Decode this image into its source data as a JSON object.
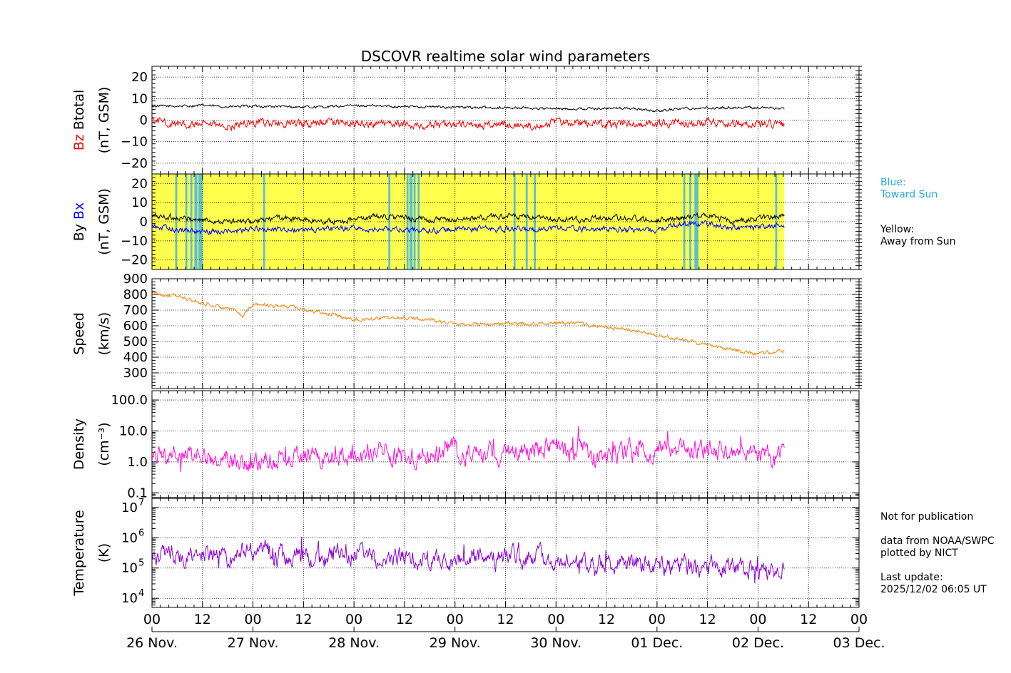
{
  "chart_data": [
    {
      "panel": "magnetic-field-total",
      "type": "line",
      "title": "DSCOVR realtime solar wind parameters",
      "ylabel_parts": [
        {
          "text": "Bz",
          "color": "#ff0000"
        },
        {
          "text": "Btotal",
          "color": "#000000"
        }
      ],
      "ylabel_units": "(nT, GSM)",
      "ylim": [
        -25,
        25
      ],
      "yticks": [
        20,
        10,
        0,
        -10,
        -20
      ],
      "ytick_labels": [
        "20",
        "10",
        "0",
        "−10",
        "−20"
      ],
      "grid": true,
      "series": [
        {
          "name": "Btotal",
          "color": "#000000",
          "x_days": [
            0,
            0.25,
            0.5,
            0.75,
            1,
            1.25,
            1.5,
            1.75,
            2,
            2.25,
            2.5,
            2.75,
            3,
            3.25,
            3.5,
            3.75,
            4,
            4.25,
            4.5,
            4.75,
            5,
            5.25,
            5.5,
            5.75,
            6,
            6.26
          ],
          "values": [
            6.5,
            6.5,
            6.8,
            6.2,
            6.5,
            6.3,
            6,
            6.2,
            6.8,
            6.5,
            6.3,
            6.2,
            6,
            5.8,
            5.8,
            5.6,
            5.2,
            5.3,
            5.5,
            5.5,
            4.2,
            5.5,
            5.6,
            5.8,
            5.8,
            5.5
          ]
        },
        {
          "name": "Bz",
          "color": "#ff0000",
          "x_days": [
            0,
            0.25,
            0.5,
            0.75,
            1,
            1.25,
            1.5,
            1.75,
            2,
            2.25,
            2.5,
            2.75,
            3,
            3.25,
            3.5,
            3.75,
            4,
            4.25,
            4.5,
            4.75,
            5,
            5.25,
            5.5,
            5.75,
            6,
            6.26
          ],
          "values": [
            0,
            -2,
            -2.5,
            -3,
            -1,
            -1.5,
            -2,
            -1,
            -1.5,
            -2,
            -2,
            -2.5,
            -2,
            -2.5,
            -2,
            -2.5,
            -1,
            -1.5,
            -2,
            -1.5,
            -1.5,
            -1.5,
            -0.5,
            -1.5,
            -2,
            -2
          ]
        }
      ]
    },
    {
      "panel": "magnetic-field-components",
      "type": "line",
      "ylabel_parts": [
        {
          "text": "By",
          "color": "#000000"
        },
        {
          "text": "Bx",
          "color": "#0000ff"
        }
      ],
      "ylabel_units": "(nT, GSM)",
      "ylim": [
        -25,
        25
      ],
      "yticks": [
        20,
        10,
        0,
        -10,
        -20
      ],
      "ytick_labels": [
        "20",
        "10",
        "0",
        "−10",
        "−20"
      ],
      "grid": true,
      "background": {
        "away_color": "#ffff4d",
        "toward_color": "#5cc0d4",
        "data_end_day": 6.26
      },
      "toward_sun_intervals_days": [
        [
          0.23,
          0.25
        ],
        [
          0.33,
          0.35
        ],
        [
          0.38,
          0.4
        ],
        [
          0.42,
          0.45
        ],
        [
          0.46,
          0.48
        ],
        [
          0.47,
          0.5
        ],
        [
          1.1,
          1.12
        ],
        [
          2.34,
          2.36
        ],
        [
          2.52,
          2.54
        ],
        [
          2.55,
          2.58
        ],
        [
          2.59,
          2.61
        ],
        [
          2.63,
          2.65
        ],
        [
          3.58,
          3.6
        ],
        [
          3.7,
          3.72
        ],
        [
          3.78,
          3.8
        ],
        [
          5.26,
          5.28
        ],
        [
          5.32,
          5.34
        ],
        [
          5.37,
          5.41
        ],
        [
          6.17,
          6.19
        ]
      ],
      "series": [
        {
          "name": "By",
          "color": "#000000",
          "x_days": [
            0,
            0.25,
            0.5,
            0.75,
            1,
            1.25,
            1.5,
            1.75,
            2,
            2.25,
            2.5,
            2.75,
            3,
            3.25,
            3.5,
            3.75,
            4,
            4.25,
            4.5,
            4.75,
            5,
            5.25,
            5.5,
            5.75,
            6,
            6.26
          ],
          "values": [
            3,
            2,
            1,
            0,
            0,
            2,
            1,
            0,
            1,
            3,
            2,
            1,
            1,
            2,
            3,
            2,
            1,
            1,
            2,
            2,
            1,
            2,
            4,
            0,
            2,
            3
          ]
        },
        {
          "name": "Bx",
          "color": "#0000ff",
          "x_days": [
            0,
            0.25,
            0.5,
            0.75,
            1,
            1.25,
            1.5,
            1.75,
            2,
            2.25,
            2.5,
            2.75,
            3,
            3.25,
            3.5,
            3.75,
            4,
            4.25,
            4.5,
            4.75,
            5,
            5.25,
            5.5,
            5.75,
            6,
            6.26
          ],
          "values": [
            -2,
            -4,
            -5,
            -5,
            -4,
            -4,
            -4.5,
            -4,
            -3.5,
            -4,
            -4,
            -4.5,
            -4,
            -3.5,
            -4,
            -4,
            -3,
            -4,
            -4,
            -4,
            -4.5,
            -1,
            -1,
            -3.5,
            -3,
            -2
          ]
        }
      ]
    },
    {
      "panel": "speed",
      "type": "line",
      "ylabel": "Speed",
      "ylabel_units": "(km/s)",
      "ylim": [
        200,
        900
      ],
      "yticks": [
        900,
        800,
        700,
        600,
        500,
        400,
        300
      ],
      "ytick_labels": [
        "900",
        "800",
        "700",
        "600",
        "500",
        "400",
        "300"
      ],
      "grid": true,
      "series": [
        {
          "name": "Speed",
          "color": "#ff7f00",
          "x_days": [
            0,
            0.1,
            0.25,
            0.4,
            0.6,
            0.8,
            0.9,
            1,
            1.2,
            1.4,
            1.6,
            1.8,
            2,
            2.25,
            2.5,
            2.75,
            3,
            3.25,
            3.5,
            3.75,
            4,
            4.25,
            4.5,
            4.75,
            5,
            5.25,
            5.5,
            5.75,
            6,
            6.26
          ],
          "values": [
            810,
            800,
            790,
            760,
            730,
            700,
            660,
            740,
            730,
            720,
            690,
            670,
            640,
            650,
            650,
            640,
            610,
            610,
            615,
            610,
            620,
            610,
            590,
            570,
            540,
            510,
            480,
            450,
            420,
            440
          ]
        }
      ]
    },
    {
      "panel": "density",
      "type": "line",
      "yscale": "log",
      "ylabel": "Density",
      "ylabel_units": "(cm⁻³)",
      "ylim": [
        0.07,
        200
      ],
      "yticks": [
        100,
        10,
        1,
        0.1
      ],
      "ytick_labels": [
        "100.0",
        "10.0",
        "1.0",
        "0.1"
      ],
      "grid": true,
      "series": [
        {
          "name": "Density",
          "color": "#ff10d8",
          "x_days": [
            0,
            0.25,
            0.5,
            0.75,
            1,
            1.25,
            1.5,
            1.75,
            2,
            2.25,
            2.5,
            2.75,
            3,
            3.25,
            3.5,
            3.75,
            4,
            4.25,
            4.5,
            4.75,
            5,
            5.25,
            5.5,
            5.75,
            6,
            6.26
          ],
          "values": [
            1.3,
            1.4,
            1.5,
            1.3,
            1,
            1.3,
            1.5,
            1.6,
            1.8,
            2,
            1.5,
            2,
            2.5,
            1.6,
            1.8,
            2.5,
            2.8,
            1.8,
            1.5,
            2,
            2,
            2.5,
            3,
            1.6,
            1.5,
            2.2
          ]
        }
      ]
    },
    {
      "panel": "temperature",
      "type": "line",
      "yscale": "log",
      "ylabel": "Temperature",
      "ylabel_units": "(K)",
      "ylim": [
        5000,
        20000000
      ],
      "yticks": [
        10000000,
        1000000,
        100000,
        10000
      ],
      "ytick_labels": [
        "10",
        "10",
        "10",
        "10"
      ],
      "ytick_exponents": [
        "7",
        "6",
        "5",
        "4"
      ],
      "grid": true,
      "series": [
        {
          "name": "Temperature",
          "color": "#8b00d6",
          "x_days": [
            0,
            0.25,
            0.5,
            0.75,
            1,
            1.25,
            1.5,
            1.75,
            2,
            2.25,
            2.5,
            2.75,
            3,
            3.25,
            3.5,
            3.75,
            4,
            4.25,
            4.5,
            4.75,
            5,
            5.25,
            5.5,
            5.75,
            6,
            6.26
          ],
          "values": [
            280000,
            260000,
            280000,
            200000,
            400000,
            300000,
            250000,
            200000,
            300000,
            180000,
            220000,
            180000,
            160000,
            180000,
            220000,
            250000,
            200000,
            180000,
            150000,
            150000,
            110000,
            130000,
            90000,
            120000,
            70000,
            90000
          ]
        }
      ]
    }
  ],
  "x_axis": {
    "range_days": [
      0,
      7
    ],
    "hour_labels": [
      "00",
      "12",
      "00",
      "12",
      "00",
      "12",
      "00",
      "12",
      "00",
      "12",
      "00",
      "12",
      "00",
      "12",
      "00"
    ],
    "date_labels": [
      "26 Nov.",
      "27 Nov.",
      "28 Nov.",
      "29 Nov.",
      "30 Nov.",
      "01 Dec.",
      "02 Dec.",
      "03 Dec."
    ]
  },
  "legend_side": {
    "blue_label": "Blue:\nToward Sun",
    "blue_color": "#29a8e0",
    "yellow_label": "Yellow:\nAway from Sun"
  },
  "notes": {
    "text": "Not for publication\n\ndata from NOAA/SWPC\nplotted by NICT\n\nLast update:\n2025/12/02 06:05 UT"
  }
}
